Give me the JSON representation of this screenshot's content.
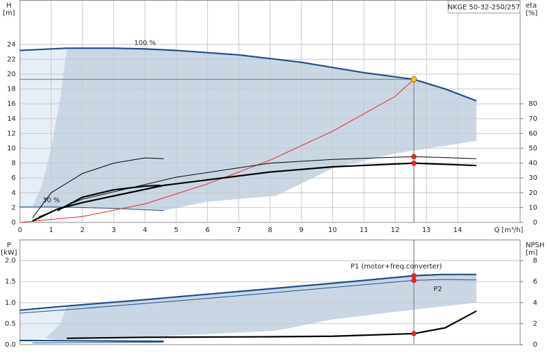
{
  "chart_data": [
    {
      "type": "line",
      "title": "NKGE 50-32-250/257",
      "x_label": "Q [m³/h]",
      "y_label": "H",
      "y_unit": "[m]",
      "y2_label": "eta",
      "y2_unit": "[%]",
      "xlim": [
        0,
        16
      ],
      "xticks": [
        0,
        1,
        2,
        3,
        4,
        5,
        6,
        7,
        8,
        9,
        10,
        11,
        12,
        13,
        14
      ],
      "ylim": [
        0,
        30
      ],
      "yticks": [
        0,
        2,
        4,
        6,
        8,
        10,
        12,
        14,
        16,
        18,
        20,
        22,
        24
      ],
      "y2lim": [
        0,
        150
      ],
      "y2ticks": [
        0,
        10,
        20,
        30,
        40,
        50,
        60,
        70,
        80
      ],
      "grid": true,
      "areas": [
        {
          "color": "#e6eef7",
          "x": [
            0,
            0,
            1.5,
            1.3,
            1.0,
            0.7,
            0.4
          ],
          "y": [
            2.1,
            23.2,
            23.5,
            17,
            10,
            5,
            2.1
          ]
        },
        {
          "color": "#c9d7e5",
          "x": [
            1.5,
            3,
            4,
            5,
            6,
            7,
            8,
            9,
            10,
            11,
            12.6,
            13.6,
            14.6,
            14.6,
            12,
            10,
            8.2,
            6,
            4.6,
            4,
            3,
            2,
            1,
            0.4,
            0.7,
            1.0,
            1.3
          ],
          "y": [
            23.5,
            23.5,
            23.4,
            23.2,
            22.9,
            22.6,
            22.1,
            21.6,
            20.9,
            20.2,
            19.3,
            18.0,
            16.4,
            11,
            9.3,
            7.3,
            3.6,
            2.8,
            1.6,
            1.7,
            1.9,
            2.0,
            2.1,
            2.1,
            5,
            10,
            17
          ]
        }
      ],
      "series": [
        {
          "name": "100 %",
          "color": "#1f4e8c",
          "weight": "bold",
          "x": [
            0,
            1.5,
            3,
            4,
            5,
            6,
            7,
            8,
            9,
            10,
            11,
            12.6,
            13.6,
            14.6
          ],
          "values": [
            23.2,
            23.5,
            23.5,
            23.4,
            23.2,
            22.9,
            22.6,
            22.1,
            21.6,
            20.9,
            20.2,
            19.3,
            18.0,
            16.4
          ]
        },
        {
          "name": "30 %",
          "color": "#1f4e8c",
          "weight": "thin",
          "x": [
            0,
            1,
            2,
            3,
            4,
            4.6
          ],
          "values": [
            2.1,
            2.1,
            2.0,
            1.9,
            1.7,
            1.6
          ]
        },
        {
          "color": "#ee2222",
          "weight": "thin",
          "x": [
            0,
            2,
            4,
            6,
            8,
            10,
            12,
            12.6
          ],
          "values": [
            0,
            0.8,
            2.5,
            5.2,
            8.4,
            12.3,
            17,
            19.3
          ]
        },
        {
          "color": "#000000",
          "weight": "thin",
          "axis": "y2",
          "x": [
            0.6,
            2,
            5,
            8,
            10,
            12.6,
            14.6
          ],
          "values": [
            3.7,
            15.7,
            30.5,
            40,
            42.5,
            44.4,
            43
          ]
        },
        {
          "color": "#000000",
          "weight": "bold",
          "axis": "y2",
          "x": [
            0.4,
            1.2,
            2,
            4.6,
            8,
            10,
            12.6,
            14.6
          ],
          "values": [
            1,
            9,
            13.4,
            25,
            34,
            37.5,
            40,
            38.4
          ]
        },
        {
          "color": "#000000",
          "weight": "thin",
          "axis": "y2",
          "x": [
            0.4,
            1,
            2,
            3,
            4,
            4.6
          ],
          "values": [
            3,
            20,
            33,
            40,
            43.5,
            43
          ]
        },
        {
          "color": "#000000",
          "weight": "bold",
          "axis": "y2",
          "x": [
            1.2,
            2,
            3,
            4,
            4.5
          ],
          "values": [
            8,
            17,
            22,
            24.5,
            25
          ]
        }
      ],
      "duty_point": {
        "x": 12.6,
        "y": 19.3,
        "color": "#ffc000"
      },
      "points": [
        {
          "x": 12.6,
          "y": 44.4,
          "axis": "y2",
          "color": "#ee2222"
        },
        {
          "x": 12.6,
          "y": 40,
          "axis": "y2",
          "color": "#ee2222"
        }
      ]
    },
    {
      "type": "line",
      "y_label": "P",
      "y_unit": "[kW]",
      "y2_label": "NPSH",
      "y2_unit": "[m]",
      "xlim": [
        0,
        16
      ],
      "ylim": [
        0,
        2.5
      ],
      "yticks": [
        {
          "value": 0,
          "label": "0.0"
        },
        0.5,
        {
          "value": 1,
          "label": "1.0"
        },
        1.5,
        {
          "value": 2,
          "label": "2.0"
        }
      ],
      "y2lim": [
        0,
        10
      ],
      "y2ticks": [
        0,
        2,
        4,
        6,
        8
      ],
      "grid": true,
      "areas": [
        {
          "color": "#e6eef7",
          "x": [
            0,
            1.5,
            1.3,
            0.8,
            0
          ],
          "y": [
            0.82,
            0.92,
            0.5,
            0.15,
            0.13
          ]
        },
        {
          "color": "#c9d7e5",
          "x": [
            1.5,
            4,
            6,
            8,
            10,
            12.6,
            13.5,
            14.6,
            14.6,
            12,
            10,
            8.2,
            4.6,
            1.2,
            0.8,
            1.3
          ],
          "y": [
            0.92,
            1.07,
            1.2,
            1.33,
            1.46,
            1.64,
            1.67,
            1.67,
            1.0,
            0.78,
            0.6,
            0.33,
            0.2,
            0.12,
            0.15,
            0.5
          ]
        }
      ],
      "series": [
        {
          "name": "P1 (motor+freq.converter)",
          "color": "#1f4e8c",
          "weight": "bold",
          "x": [
            0,
            1.5,
            4,
            6,
            8,
            10,
            12.6,
            13.5,
            14.6
          ],
          "values": [
            0.82,
            0.92,
            1.07,
            1.2,
            1.33,
            1.46,
            1.64,
            1.67,
            1.67
          ]
        },
        {
          "name": "P2",
          "color": "#1f4e8c",
          "weight": "thin",
          "x": [
            0,
            2,
            4,
            6,
            8,
            10,
            12.6,
            13.5,
            14.6
          ],
          "values": [
            0.75,
            0.86,
            0.98,
            1.1,
            1.23,
            1.36,
            1.53,
            1.55,
            1.54
          ]
        },
        {
          "color": "#000000",
          "weight": "bold",
          "axis": "y2",
          "x": [
            1.5,
            4,
            8,
            10,
            12.6,
            13.6,
            14.6
          ],
          "values": [
            0.6,
            0.7,
            0.75,
            0.8,
            1.05,
            1.6,
            3.2
          ]
        },
        {
          "color": "#1f4e8c",
          "weight": "bold",
          "x": [
            0,
            4.6
          ],
          "values": [
            0.1,
            0.08
          ]
        },
        {
          "color": "#1f4e8c",
          "weight": "thin",
          "x": [
            0.4,
            4.6
          ],
          "values": [
            0.04,
            0.06
          ]
        }
      ],
      "points": [
        {
          "x": 12.6,
          "y": 1.64,
          "color": "#ee2222"
        },
        {
          "x": 12.6,
          "y": 1.53,
          "color": "#ee2222"
        },
        {
          "x": 12.6,
          "y": 1.05,
          "axis": "y2",
          "color": "#ee2222"
        }
      ]
    }
  ]
}
